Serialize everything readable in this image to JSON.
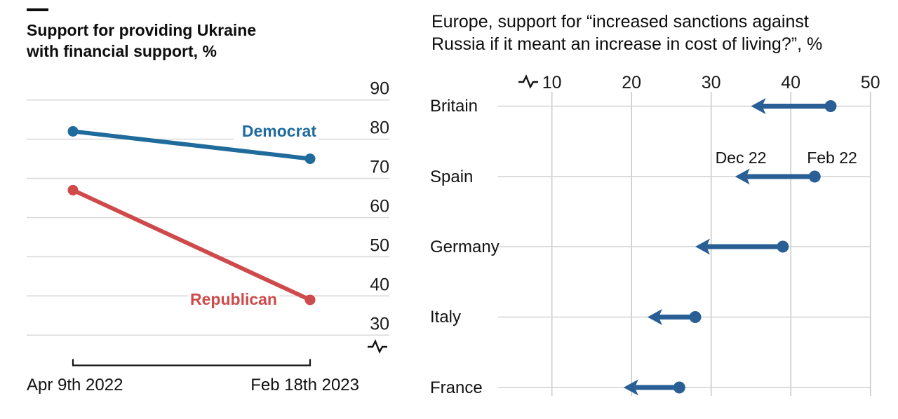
{
  "colors": {
    "text": "#121212",
    "grid_left": "#d9d9d9",
    "grid_right": "#cccccc",
    "democrat_blue": "#1e6b9c",
    "republican_red": "#cf4a4a",
    "arrow_blue": "#2a5f96"
  },
  "left_chart": {
    "title_line1": "Support for providing Ukraine",
    "title_line2": "with financial support, %"
  },
  "right_chart": {
    "title_line1": "Europe, support for “increased sanctions against",
    "title_line2": "Russia if it meant an increase in cost of living?”, %"
  },
  "chart_data": [
    {
      "type": "line",
      "title": "Support for providing Ukraine with financial support, %",
      "x": [
        "Apr 9th 2022",
        "Feb 18th 2023"
      ],
      "series": [
        {
          "name": "Democrat",
          "values": [
            82,
            75
          ],
          "color": "#1e6b9c"
        },
        {
          "name": "Republican",
          "values": [
            67,
            39
          ],
          "color": "#cf4a4a"
        }
      ],
      "yticks": [
        90,
        80,
        70,
        60,
        50,
        40,
        30
      ],
      "ylim": [
        27,
        92
      ],
      "grid": "horizontal",
      "axis_break": true,
      "legend_position": "direct-labels-on-lines"
    },
    {
      "type": "arrow-dot",
      "title": "Europe, support for “increased sanctions against Russia if it meant an increase in cost of living?”, %",
      "categories": [
        "Britain",
        "Spain",
        "Germany",
        "Italy",
        "France"
      ],
      "series": [
        {
          "name": "Feb 22",
          "values": [
            45,
            43,
            39,
            28,
            26
          ]
        },
        {
          "name": "Dec 22",
          "values": [
            35,
            33,
            28,
            22,
            19
          ]
        }
      ],
      "arrow_direction": "from Feb 22 dot to Dec 22 arrowhead",
      "xticks": [
        10,
        20,
        30,
        40,
        50
      ],
      "xlim": [
        7,
        52
      ],
      "grid": "vertical",
      "axis_break": true
    }
  ]
}
